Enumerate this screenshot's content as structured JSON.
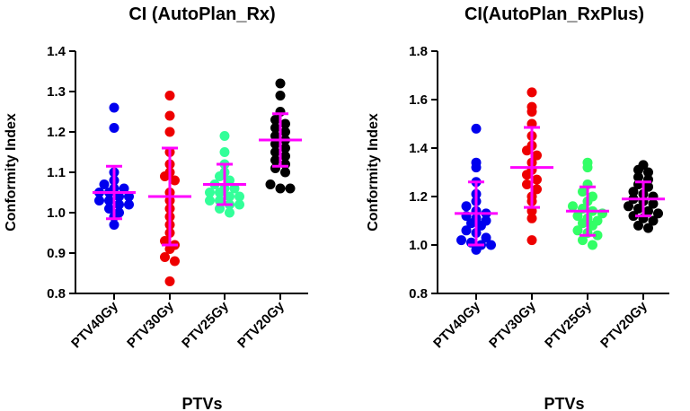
{
  "chart_data": [
    {
      "type": "scatter",
      "subtype": "dot-plot with mean and SD error bars",
      "title": "CI (AutoPlan_Rx)",
      "ylabel": "Conformity Index",
      "xlabel": "PTVs",
      "ylim": [
        0.8,
        1.4
      ],
      "yticks": [
        "0.8",
        "0.9",
        "1.0",
        "1.1",
        "1.2",
        "1.3",
        "1.4"
      ],
      "categories": [
        "PTV40Gy",
        "PTV30Gy",
        "PTV25Gy",
        "PTV20Gy"
      ],
      "colors": [
        "#0000ee",
        "#ee0000",
        "#33ff99",
        "#000000"
      ],
      "mean_color": "#ff00ff",
      "series": [
        {
          "name": "PTV40Gy",
          "mean": 1.05,
          "sd": 0.065,
          "values": [
            1.26,
            1.21,
            1.1,
            1.08,
            1.07,
            1.06,
            1.06,
            1.05,
            1.05,
            1.04,
            1.04,
            1.03,
            1.03,
            1.02,
            1.02,
            1.01,
            1.0,
            0.99,
            0.97
          ]
        },
        {
          "name": "PTV30Gy",
          "mean": 1.04,
          "sd": 0.12,
          "values": [
            1.29,
            1.24,
            1.2,
            1.15,
            1.12,
            1.1,
            1.09,
            1.08,
            1.05,
            1.03,
            1.01,
            0.99,
            0.97,
            0.95,
            0.93,
            0.92,
            0.91,
            0.89,
            0.88,
            0.83
          ]
        },
        {
          "name": "PTV25Gy",
          "mean": 1.07,
          "sd": 0.05,
          "values": [
            1.19,
            1.15,
            1.12,
            1.1,
            1.09,
            1.08,
            1.07,
            1.06,
            1.06,
            1.05,
            1.05,
            1.04,
            1.04,
            1.03,
            1.03,
            1.02,
            1.02,
            1.01,
            1.0
          ]
        },
        {
          "name": "PTV20Gy",
          "mean": 1.18,
          "sd": 0.065,
          "values": [
            1.32,
            1.29,
            1.25,
            1.23,
            1.22,
            1.21,
            1.2,
            1.19,
            1.18,
            1.17,
            1.16,
            1.15,
            1.14,
            1.13,
            1.12,
            1.11,
            1.1,
            1.07,
            1.06,
            1.06
          ]
        }
      ]
    },
    {
      "type": "scatter",
      "subtype": "dot-plot with mean and SD error bars",
      "title": "CI(AutoPlan_RxPlus)",
      "ylabel": "Conformity Index",
      "xlabel": "PTVs",
      "ylim": [
        0.8,
        1.8
      ],
      "yticks": [
        "0.8",
        "1.0",
        "1.2",
        "1.4",
        "1.6",
        "1.8"
      ],
      "categories": [
        "PTV40Gy",
        "PTV30Gy",
        "PTV25Gy",
        "PTV20Gy"
      ],
      "colors": [
        "#0000ee",
        "#ee0000",
        "#33ff66",
        "#000000"
      ],
      "mean_color": "#ff00ff",
      "series": [
        {
          "name": "PTV40Gy",
          "mean": 1.13,
          "sd": 0.13,
          "values": [
            1.48,
            1.34,
            1.32,
            1.26,
            1.21,
            1.18,
            1.16,
            1.14,
            1.13,
            1.12,
            1.11,
            1.1,
            1.09,
            1.08,
            1.06,
            1.05,
            1.03,
            1.02,
            1.01,
            1.0,
            1.0,
            0.98
          ]
        },
        {
          "name": "PTV30Gy",
          "mean": 1.32,
          "sd": 0.165,
          "values": [
            1.63,
            1.57,
            1.55,
            1.5,
            1.45,
            1.41,
            1.39,
            1.37,
            1.34,
            1.31,
            1.29,
            1.27,
            1.25,
            1.23,
            1.2,
            1.18,
            1.14,
            1.11,
            1.02
          ]
        },
        {
          "name": "PTV25Gy",
          "mean": 1.14,
          "sd": 0.1,
          "values": [
            1.34,
            1.32,
            1.25,
            1.22,
            1.2,
            1.18,
            1.16,
            1.15,
            1.14,
            1.13,
            1.12,
            1.11,
            1.1,
            1.09,
            1.08,
            1.06,
            1.05,
            1.04,
            1.02,
            1.0
          ]
        },
        {
          "name": "PTV20Gy",
          "mean": 1.19,
          "sd": 0.07,
          "values": [
            1.33,
            1.31,
            1.3,
            1.28,
            1.27,
            1.25,
            1.24,
            1.22,
            1.21,
            1.2,
            1.19,
            1.18,
            1.17,
            1.16,
            1.15,
            1.14,
            1.13,
            1.12,
            1.11,
            1.1,
            1.08,
            1.07
          ]
        }
      ]
    }
  ]
}
